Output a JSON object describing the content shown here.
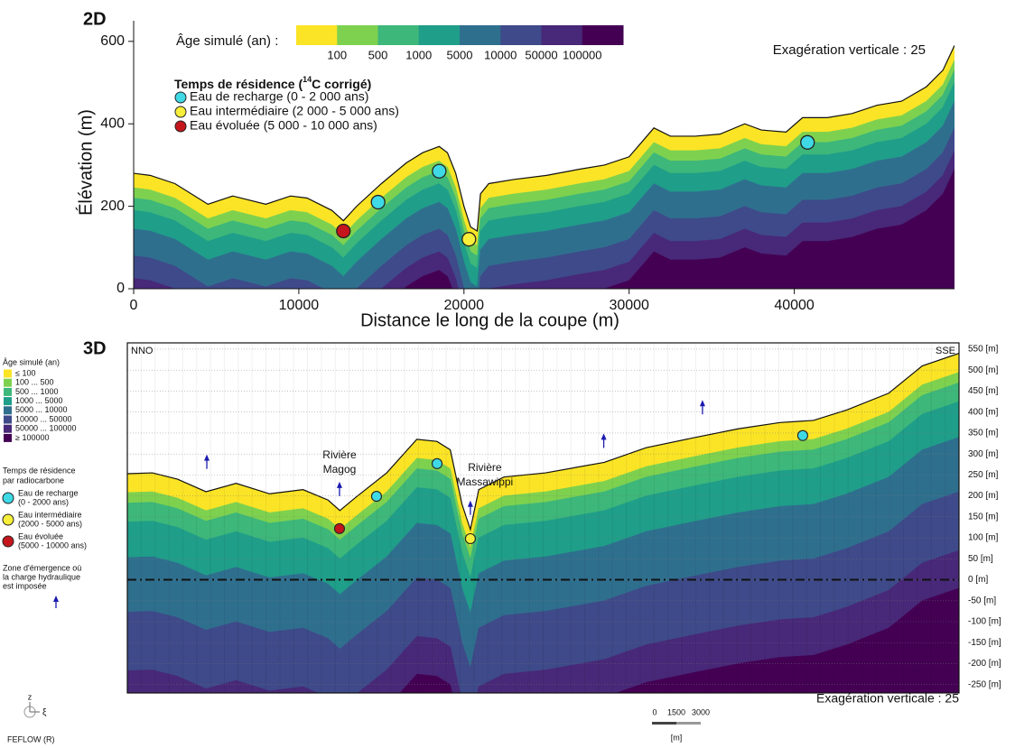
{
  "chart_data": [
    {
      "type": "section",
      "label": "2D",
      "xlabel": "Distance le long de la coupe (m)",
      "ylabel": "Élévation (m)",
      "xlim": [
        0,
        49700
      ],
      "ylim": [
        0,
        650
      ],
      "xticks": [
        0,
        10000,
        20000,
        30000,
        40000
      ],
      "yticks": [
        0,
        200,
        400,
        600
      ],
      "surface": {
        "x": [
          0,
          1000,
          2500,
          4500,
          6000,
          8000,
          9500,
          10500,
          12000,
          12700,
          13500,
          15000,
          16500,
          17500,
          18500,
          19000,
          19500,
          20000,
          20400,
          20800,
          21000,
          21500,
          23000,
          25000,
          27000,
          28500,
          30000,
          31500,
          32500,
          34000,
          35500,
          37000,
          38000,
          39500,
          40500,
          42000,
          43500,
          45000,
          46500,
          48000,
          49000,
          49700
        ],
        "y": [
          280,
          275,
          255,
          205,
          225,
          205,
          225,
          220,
          190,
          165,
          200,
          255,
          305,
          330,
          345,
          330,
          280,
          200,
          150,
          140,
          230,
          255,
          265,
          275,
          290,
          300,
          320,
          390,
          370,
          370,
          375,
          400,
          385,
          380,
          415,
          415,
          425,
          445,
          455,
          490,
          530,
          590
        ]
      },
      "colorbar": {
        "title": "Âge simulé (an) :",
        "colors": [
          "#fbe426",
          "#7ed14f",
          "#3db77a",
          "#1f9e89",
          "#2f6f8e",
          "#3e4a89",
          "#482878",
          "#440154"
        ],
        "labels": [
          "100",
          "500",
          "1000",
          "5000",
          "10000",
          "50000",
          "100000"
        ]
      },
      "legend_title": [
        "Temps de résidence (",
        "14",
        "C corrigé)"
      ],
      "series": [
        {
          "name": "Eau de recharge (0 - 2 000 ans)",
          "color": "#3fd9e6",
          "x": [
            14800,
            18500,
            40800
          ],
          "y": [
            210,
            285,
            355
          ]
        },
        {
          "name": "Eau intermédiaire (2 000 - 5 000 ans)",
          "color": "#f7ef3a",
          "x": [
            20300
          ],
          "y": [
            120
          ]
        },
        {
          "name": "Eau évoluée (5 000 - 10 000 ans)",
          "color": "#c4161c",
          "x": [
            12700
          ],
          "y": [
            140
          ]
        }
      ],
      "annotation": "Exagération verticale : 25"
    },
    {
      "type": "section3d",
      "label": "3D",
      "left_label": "NNO",
      "right_label": "SSE",
      "xlim": [
        0,
        49700
      ],
      "ylim": [
        -270,
        565
      ],
      "grid": true,
      "yticks": [
        {
          "value": 550,
          "label": "550 [m]"
        },
        {
          "value": 500,
          "label": "500 [m]"
        },
        {
          "value": 450,
          "label": "450 [m]"
        },
        {
          "value": 400,
          "label": "400 [m]"
        },
        {
          "value": 350,
          "label": "350 [m]"
        },
        {
          "value": 300,
          "label": "300 [m]"
        },
        {
          "value": 250,
          "label": "250 [m]"
        },
        {
          "value": 200,
          "label": "200 [m]"
        },
        {
          "value": 150,
          "label": "150 [m]"
        },
        {
          "value": 100,
          "label": "100 [m]"
        },
        {
          "value": 50,
          "label": "50 [m]"
        },
        {
          "value": 0,
          "label": "0 [m]"
        },
        {
          "value": -50,
          "label": "-50 [m]"
        },
        {
          "value": -100,
          "label": "-100 [m]"
        },
        {
          "value": -150,
          "label": "-150 [m]"
        },
        {
          "value": -200,
          "label": "-200 [m]"
        },
        {
          "value": -250,
          "label": "-250 [m]"
        }
      ],
      "surface": {
        "x": [
          0,
          1500,
          3000,
          4700,
          6500,
          8500,
          10500,
          12000,
          12700,
          13600,
          15500,
          17300,
          18500,
          19300,
          20000,
          20500,
          21000,
          22500,
          25000,
          28500,
          31000,
          34000,
          36500,
          39000,
          41000,
          43000,
          45500,
          47500,
          49700
        ],
        "y": [
          253,
          255,
          240,
          210,
          230,
          205,
          215,
          190,
          165,
          195,
          255,
          335,
          330,
          310,
          180,
          120,
          215,
          245,
          255,
          280,
          315,
          340,
          360,
          375,
          380,
          405,
          445,
          510,
          540
        ]
      },
      "legend_age": {
        "title": "Âge simulé (an)",
        "colors": [
          "#fbe426",
          "#7ed14f",
          "#3db77a",
          "#1f9e89",
          "#2f6f8e",
          "#3e4a89",
          "#482878",
          "#440154"
        ],
        "labels": [
          "≤ 100",
          "100 ...  500",
          "500 ...  1000",
          "1000 ...  5000",
          "5000 ...  10000",
          "10000 ...  50000",
          "50000 ...  100000",
          "≥ 100000"
        ]
      },
      "legend_points_title": [
        "Temps de résidence",
        "par radiocarbone"
      ],
      "series": [
        {
          "name": [
            "Eau de recharge",
            "(0 - 2000 ans)"
          ],
          "color": "#3fd9e6",
          "x": [
            14890,
            18510,
            40360
          ],
          "y": [
            199,
            277,
            344
          ]
        },
        {
          "name": [
            "Eau intermédiaire",
            "(2000 - 5000 ans)"
          ],
          "color": "#f7ef3a",
          "x": [
            20500
          ],
          "y": [
            98
          ]
        },
        {
          "name": [
            "Eau évoluée",
            "(5000 - 10000 ans)"
          ],
          "color": "#c4161c",
          "x": [
            12680
          ],
          "y": [
            122
          ]
        }
      ],
      "emergence": {
        "label": [
          "Zone d'émergence où",
          "la charge hydraulique",
          "est imposée"
        ],
        "x": [
          4750,
          12680,
          20500,
          28470,
          34370
        ]
      },
      "rivers": [
        {
          "name": [
            "Rivière",
            "Magog"
          ],
          "x": 12680
        },
        {
          "name": [
            "Rivière",
            "Massawippi"
          ],
          "x": 20500
        }
      ],
      "annotation": "Exagération verticale : 25",
      "scale_bar": {
        "ticks": [
          0,
          1500,
          3000
        ],
        "unit": "[m]"
      },
      "axes_icon": [
        "z",
        "ξ"
      ],
      "software": "FEFLOW (R)"
    }
  ]
}
